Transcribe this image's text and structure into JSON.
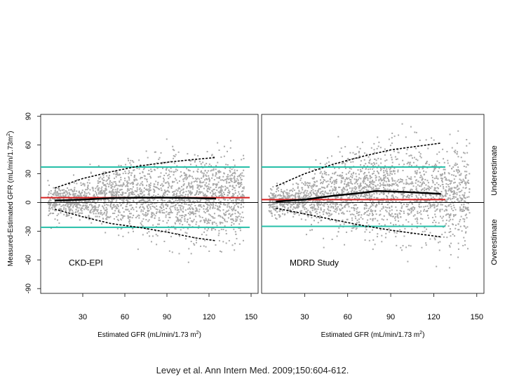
{
  "citation": "Levey et al. Ann Intern Med. 2009;150:604-612.",
  "y_axis_label_main": "Measured-Estimated GFR (mL/min/1.73m",
  "y_axis_label_sup": "2",
  "y_axis_label_end": ")",
  "side_labels": {
    "upper": "Underestimate",
    "lower": "Overestimate"
  },
  "colors": {
    "points": "#a9a9a9",
    "smooth": "#000000",
    "mean_line": "#d62020",
    "limits": "#26bfa8",
    "zero_line": "#000000",
    "axis": "#000000"
  },
  "chart_data": [
    {
      "type": "scatter",
      "title": "CKD-EPI",
      "xlabel": "Estimated GFR (mL/min/1.73 m",
      "xlabel_sup": "2",
      "xlabel_end": ")",
      "xlim": [
        0,
        155
      ],
      "ylim": [
        -95,
        92
      ],
      "xticks": [
        30,
        60,
        90,
        120,
        150
      ],
      "yticks": [
        -90,
        -60,
        -30,
        0,
        30,
        60,
        90
      ],
      "reference_lines": {
        "zero": 0,
        "mean_difference": 5,
        "upper_limit": 37,
        "lower_limit": -26
      },
      "smooth_median": {
        "x": [
          10,
          30,
          50,
          70,
          90,
          110,
          125
        ],
        "y": [
          2,
          3,
          4.5,
          5,
          5,
          4.5,
          4
        ]
      },
      "upper_quantile": {
        "x": [
          10,
          30,
          50,
          70,
          90,
          110,
          125
        ],
        "y": [
          15,
          25,
          32,
          38,
          42,
          45,
          47
        ]
      },
      "lower_quantile": {
        "x": [
          10,
          30,
          50,
          70,
          90,
          110,
          125
        ],
        "y": [
          -7,
          -15,
          -22,
          -26,
          -31,
          -37,
          -40
        ]
      },
      "scatter_center": [
        {
          "x": 20,
          "m": 1,
          "s": 8
        },
        {
          "x": 40,
          "m": 3,
          "s": 13
        },
        {
          "x": 60,
          "m": 5,
          "s": 17
        },
        {
          "x": 80,
          "m": 5,
          "s": 19
        },
        {
          "x": 100,
          "m": 5,
          "s": 20
        },
        {
          "x": 120,
          "m": 4,
          "s": 21
        }
      ]
    },
    {
      "type": "scatter",
      "title": "MDRD Study",
      "xlabel": "Estimated GFR (mL/min/1.73 m",
      "xlabel_sup": "2",
      "xlabel_end": ")",
      "xlim": [
        0,
        155
      ],
      "ylim": [
        -95,
        92
      ],
      "xticks": [
        30,
        60,
        90,
        120,
        150
      ],
      "yticks": [
        -90,
        -60,
        -30,
        0,
        30,
        60,
        90
      ],
      "reference_lines": {
        "zero": 0,
        "mean_difference": 3,
        "upper_limit": 37,
        "lower_limit": -25
      },
      "smooth_median": {
        "x": [
          10,
          30,
          50,
          70,
          80,
          100,
          125
        ],
        "y": [
          1,
          3,
          7,
          10,
          12,
          11,
          9
        ]
      },
      "upper_quantile": {
        "x": [
          10,
          30,
          50,
          70,
          90,
          110,
          125
        ],
        "y": [
          17,
          30,
          40,
          48,
          55,
          59,
          62
        ]
      },
      "lower_quantile": {
        "x": [
          10,
          30,
          50,
          70,
          90,
          110,
          125
        ],
        "y": [
          -6,
          -12,
          -18,
          -24,
          -29,
          -33,
          -36
        ]
      },
      "scatter_center": [
        {
          "x": 20,
          "m": 1,
          "s": 8
        },
        {
          "x": 40,
          "m": 6,
          "s": 15
        },
        {
          "x": 60,
          "m": 9,
          "s": 20
        },
        {
          "x": 80,
          "m": 12,
          "s": 22
        },
        {
          "x": 100,
          "m": 11,
          "s": 24
        },
        {
          "x": 120,
          "m": 9,
          "s": 25
        }
      ]
    }
  ]
}
